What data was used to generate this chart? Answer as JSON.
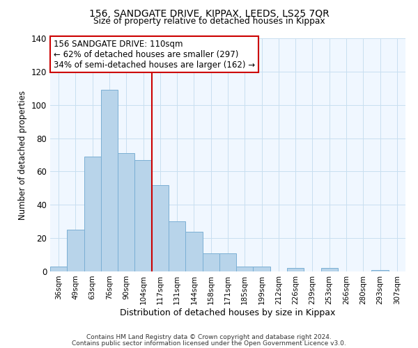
{
  "title": "156, SANDGATE DRIVE, KIPPAX, LEEDS, LS25 7QR",
  "subtitle": "Size of property relative to detached houses in Kippax",
  "xlabel": "Distribution of detached houses by size in Kippax",
  "ylabel": "Number of detached properties",
  "bin_labels": [
    "36sqm",
    "49sqm",
    "63sqm",
    "76sqm",
    "90sqm",
    "104sqm",
    "117sqm",
    "131sqm",
    "144sqm",
    "158sqm",
    "171sqm",
    "185sqm",
    "199sqm",
    "212sqm",
    "226sqm",
    "239sqm",
    "253sqm",
    "266sqm",
    "280sqm",
    "293sqm",
    "307sqm"
  ],
  "bar_heights": [
    3,
    25,
    69,
    109,
    71,
    67,
    52,
    30,
    24,
    11,
    11,
    3,
    3,
    0,
    2,
    0,
    2,
    0,
    0,
    1,
    0
  ],
  "bar_color": "#b8d4ea",
  "bar_edge_color": "#7bafd4",
  "vline_x": 5.5,
  "vline_color": "#cc0000",
  "annotation_title": "156 SANDGATE DRIVE: 110sqm",
  "annotation_line1": "← 62% of detached houses are smaller (297)",
  "annotation_line2": "34% of semi-detached houses are larger (162) →",
  "annotation_box_color": "#ffffff",
  "annotation_box_edge": "#cc0000",
  "ylim": [
    0,
    140
  ],
  "yticks": [
    0,
    20,
    40,
    60,
    80,
    100,
    120,
    140
  ],
  "footnote1": "Contains HM Land Registry data © Crown copyright and database right 2024.",
  "footnote2": "Contains public sector information licensed under the Open Government Licence v3.0."
}
